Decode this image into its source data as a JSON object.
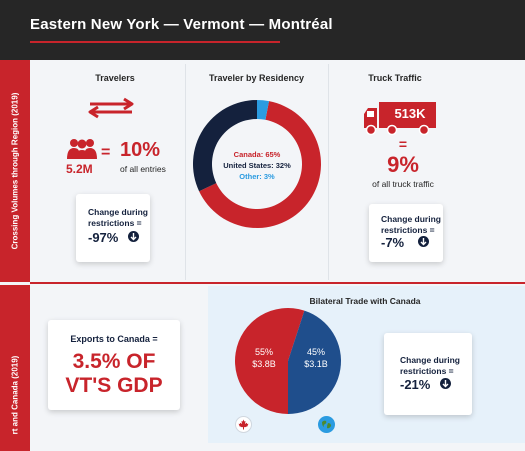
{
  "header": {
    "title": "Eastern New York — Vermont — Montréal"
  },
  "side_labels": {
    "top": "Crossing Volumes through Region (2019)",
    "bottom": "rt and Canada (2019)"
  },
  "travelers": {
    "title": "Travelers",
    "count": "5.2M",
    "equals": "=",
    "percent": "10%",
    "caption": "of all entries",
    "change_label": "Change during restrictions =",
    "change_value": "-97%"
  },
  "residency": {
    "title": "Traveler by Residency",
    "legend": [
      {
        "label": "Canada: 65%",
        "color": "#c8242b"
      },
      {
        "label": "United States: 32%",
        "color": "#14213d"
      },
      {
        "label": "Other: 3%",
        "color": "#2b9be0"
      }
    ]
  },
  "truck": {
    "title": "Truck Traffic",
    "count": "513K",
    "equals": "=",
    "percent": "9%",
    "caption": "of all truck traffic",
    "change_label": "Change during restrictions =",
    "change_value": "-7%"
  },
  "exports": {
    "label": "Exports to Canada =",
    "value_line1": "3.5% OF",
    "value_line2": "VT'S GDP"
  },
  "trade": {
    "title": "Bilateral Trade with Canada",
    "change_label": "Change during restrictions =",
    "change_value": "-21%"
  },
  "chart_data": [
    {
      "type": "pie",
      "title": "Traveler by Residency",
      "donut": true,
      "slices": [
        {
          "name": "Canada",
          "value": 65,
          "color": "#c8242b"
        },
        {
          "name": "United States",
          "value": 32,
          "color": "#14213d"
        },
        {
          "name": "Other",
          "value": 3,
          "color": "#2b9be0"
        }
      ]
    },
    {
      "type": "pie",
      "title": "Bilateral Trade with Canada",
      "slices": [
        {
          "name": "55%",
          "label": "$3.8B",
          "value": 55,
          "color": "#c8242b"
        },
        {
          "name": "45%",
          "label": "$3.1B",
          "value": 45,
          "color": "#1f4e8c"
        }
      ]
    }
  ],
  "colors": {
    "red": "#c8242b",
    "navy": "#14213d",
    "header": "#262626",
    "light_blue": "#2b9be0",
    "trade_blue": "#1f4e8c"
  },
  "icons": [
    "double-arrow-icon",
    "people-icon",
    "down-arrow-icon",
    "truck-icon",
    "canada-flag-icon",
    "globe-icon"
  ]
}
